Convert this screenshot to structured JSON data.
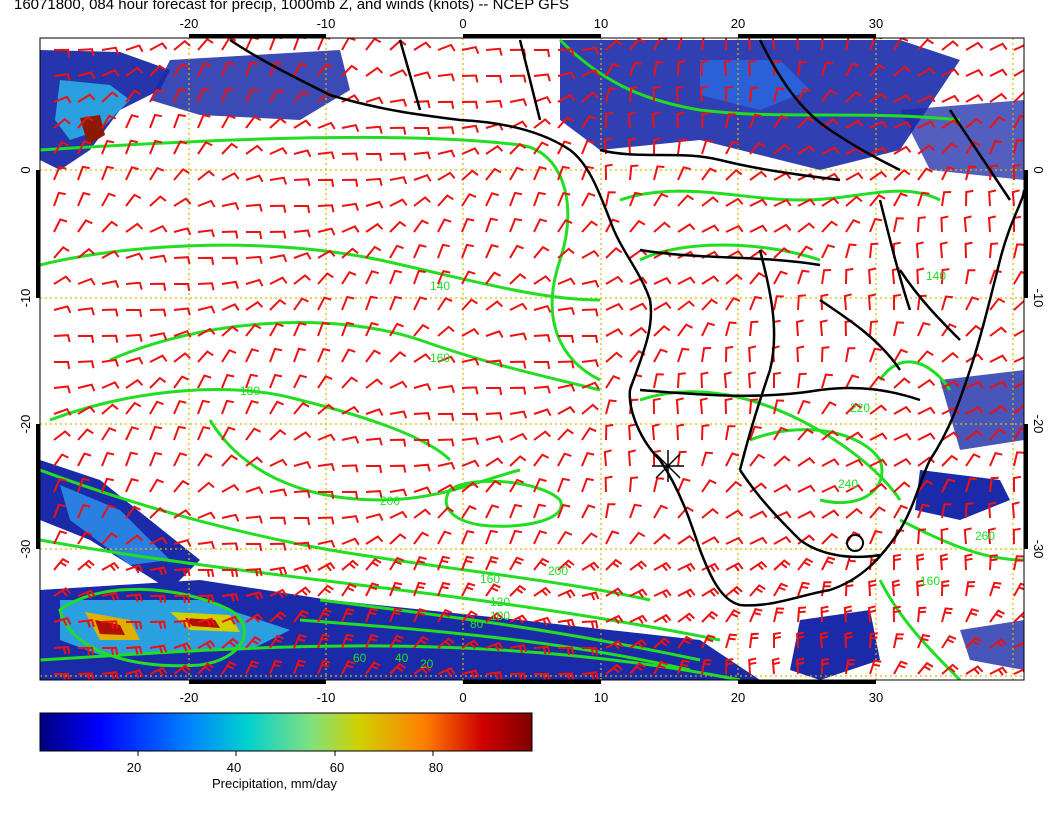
{
  "title": "16071800, 084 hour forecast for precip, 1000mb Z, and winds (knots) -- NCEP GFS",
  "map": {
    "lon_ticks": [
      "-20",
      "-10",
      "0",
      "10",
      "20",
      "30"
    ],
    "lat_ticks": [
      "0",
      "-10",
      "-20",
      "-30"
    ],
    "contour_labels": [
      "140",
      "160",
      "180",
      "200",
      "20",
      "40",
      "60",
      "80",
      "100",
      "120",
      "160",
      "200",
      "220",
      "240",
      "260",
      "140",
      "160"
    ],
    "colors": {
      "contour": "#22dd22",
      "barb": "#ee1111",
      "coast": "#000000",
      "grid": "#d9b800",
      "precip_low": "#1a2aa8",
      "precip_mid": "#2aa0e0",
      "precip_high": "#8b1a00"
    },
    "layers": [
      "precipitation",
      "1000mb geopotential height contours",
      "wind barbs (knots)",
      "coastlines and borders",
      "lat/lon grid"
    ]
  },
  "colorbar": {
    "ticks": [
      "20",
      "40",
      "60",
      "80"
    ],
    "label": "Precipitation, mm/day",
    "range": [
      0,
      100
    ],
    "colormap": [
      "#00007f",
      "#0000ff",
      "#0080ff",
      "#00d0d0",
      "#80e080",
      "#d0d000",
      "#ff8000",
      "#d00000",
      "#7f0000"
    ]
  }
}
